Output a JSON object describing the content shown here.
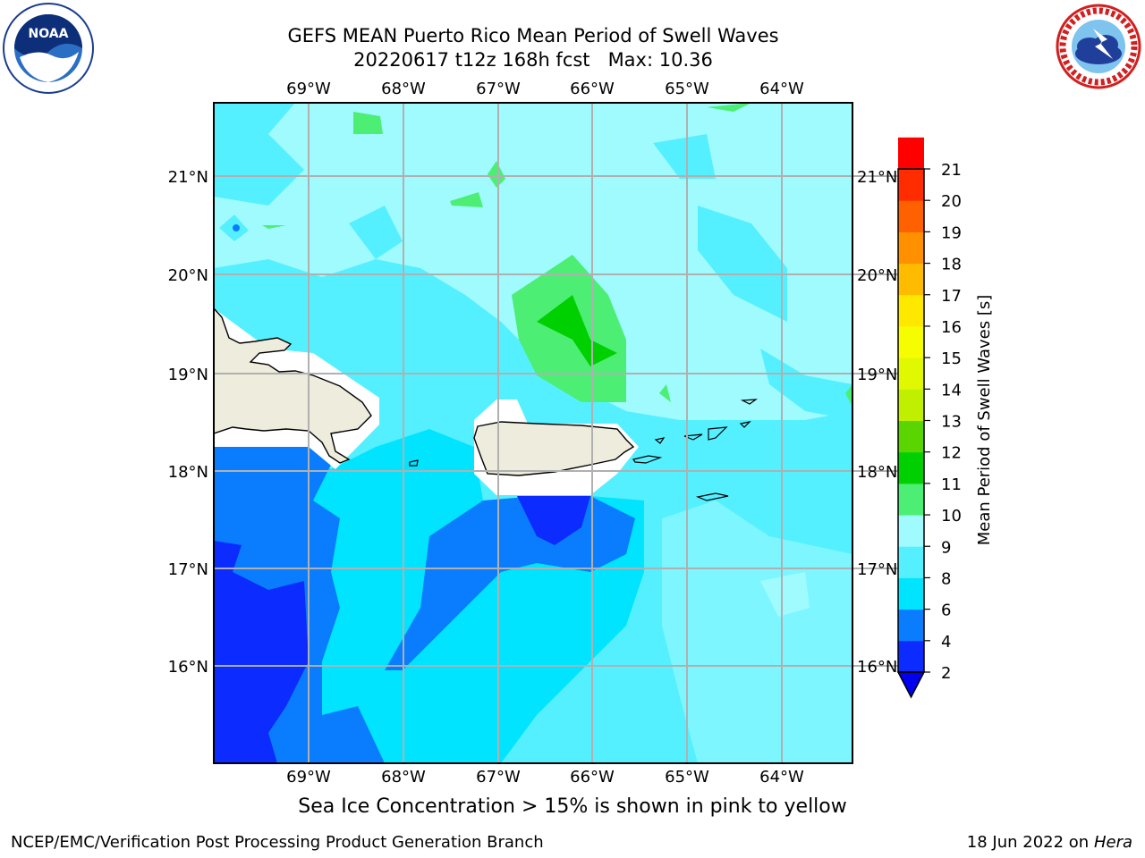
{
  "title": {
    "line1": "GEFS MEAN Puerto Rico Mean Period of Swell Waves",
    "line2": "20220617 t12z 168h fcst   Max: 10.36"
  },
  "logos": {
    "left": "NOAA",
    "right": "NATIONAL WEATHER SERVICE"
  },
  "map": {
    "lon_labels": [
      "69°W",
      "68°W",
      "67°W",
      "66°W",
      "65°W",
      "64°W"
    ],
    "lat_labels": [
      "21°N",
      "20°N",
      "19°N",
      "18°N",
      "17°N",
      "16°N"
    ],
    "land_color": "#eeecdc"
  },
  "colorbar": {
    "label": "Mean Period of Swell Waves [s]",
    "ticks": [
      "2",
      "4",
      "6",
      "8",
      "9",
      "10",
      "11",
      "12",
      "13",
      "14",
      "15",
      "16",
      "17",
      "18",
      "19",
      "20",
      "21"
    ],
    "colors": [
      "#0b2bff",
      "#0a7dff",
      "#00e4ff",
      "#55f0ff",
      "#a0fbff",
      "#4cee74",
      "#00d000",
      "#5ad500",
      "#c0f000",
      "#e0f800",
      "#f6fd00",
      "#ffe800",
      "#ffbb00",
      "#ff9000",
      "#ff6000",
      "#ff2c00",
      "#ff0000"
    ],
    "under_color": "#0000ee"
  },
  "footer": {
    "note": "Sea Ice Concentration > 15% is shown in pink to yellow",
    "left": "NCEP/EMC/Verification Post Processing Product Generation Branch",
    "right_date": "18 Jun 2022 on",
    "right_host": "Hera"
  }
}
